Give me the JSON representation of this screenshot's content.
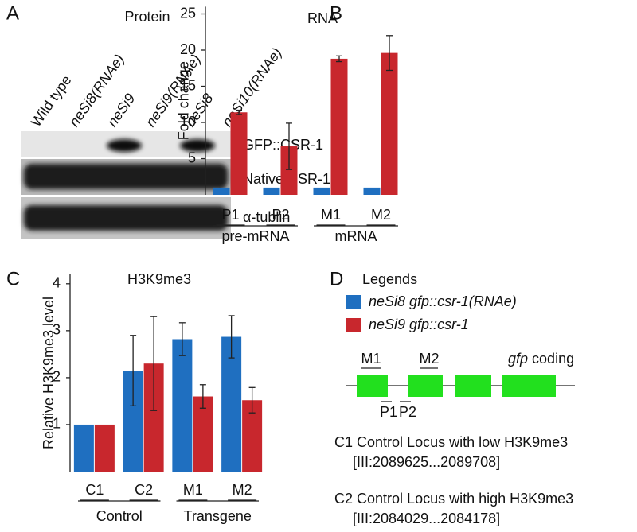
{
  "panel_labels": [
    "A",
    "B",
    "C",
    "D"
  ],
  "blot": {
    "title": "Protein",
    "lanes": [
      "Wild type",
      "neSi8(RNAe)",
      "neSi9",
      "neSi9(RNAe)",
      "neSi8",
      "neSi10(RNAe)"
    ],
    "rows": [
      "GFP::CSR-1",
      "Native CSR-1",
      "α-tublin"
    ]
  },
  "chart_data": [
    {
      "type": "bar",
      "title": "RNA",
      "y_label": "Fold change",
      "categories": [
        "P1",
        "P2",
        "M1",
        "M2"
      ],
      "groups": [
        "pre-mRNA",
        "mRNA"
      ],
      "series": [
        {
          "color": "#1f6fc0",
          "values": [
            1,
            1,
            1,
            1
          ]
        },
        {
          "color": "#c8272d",
          "values": [
            11.4,
            6.7,
            18.8,
            19.6
          ],
          "errors": [
            0.3,
            3.2,
            0.4,
            2.4
          ]
        }
      ],
      "ylim": [
        0,
        26
      ],
      "yticks": [
        5,
        10,
        15,
        20,
        25
      ]
    },
    {
      "type": "bar",
      "title": "H3K9me3",
      "y_label": "Relative H3K9me3 level",
      "categories": [
        "C1",
        "C2",
        "M1",
        "M2"
      ],
      "groups": [
        "Control",
        "Transgene"
      ],
      "series": [
        {
          "name": "neSi8 gfp::csr-1(RNAe)",
          "color": "#1f6fc0",
          "values": [
            1,
            2.15,
            2.82,
            2.87
          ],
          "errors": [
            null,
            0.75,
            0.35,
            0.45
          ]
        },
        {
          "name": "neSi9 gfp::csr-1",
          "color": "#c8272d",
          "values": [
            1,
            2.3,
            1.6,
            1.52
          ],
          "errors": [
            null,
            1.0,
            0.25,
            0.27
          ]
        }
      ],
      "ylim": [
        0,
        4.2
      ],
      "yticks": [
        1,
        2,
        3,
        4
      ]
    }
  ],
  "diagram": {
    "legend_title": "Legends",
    "exon_labels": [
      "M1",
      "M2",
      "P1",
      "P2"
    ],
    "gene_name": "gfp",
    "gene_part": "coding",
    "loci": [
      {
        "name": "C1",
        "description": "Control Locus with low H3K9me3",
        "coordinates": "[III:2089625...2089708]"
      },
      {
        "name": "C2",
        "description": "Control Locus with high H3K9me3",
        "coordinates": "[III:2084029...2084178]"
      }
    ]
  }
}
